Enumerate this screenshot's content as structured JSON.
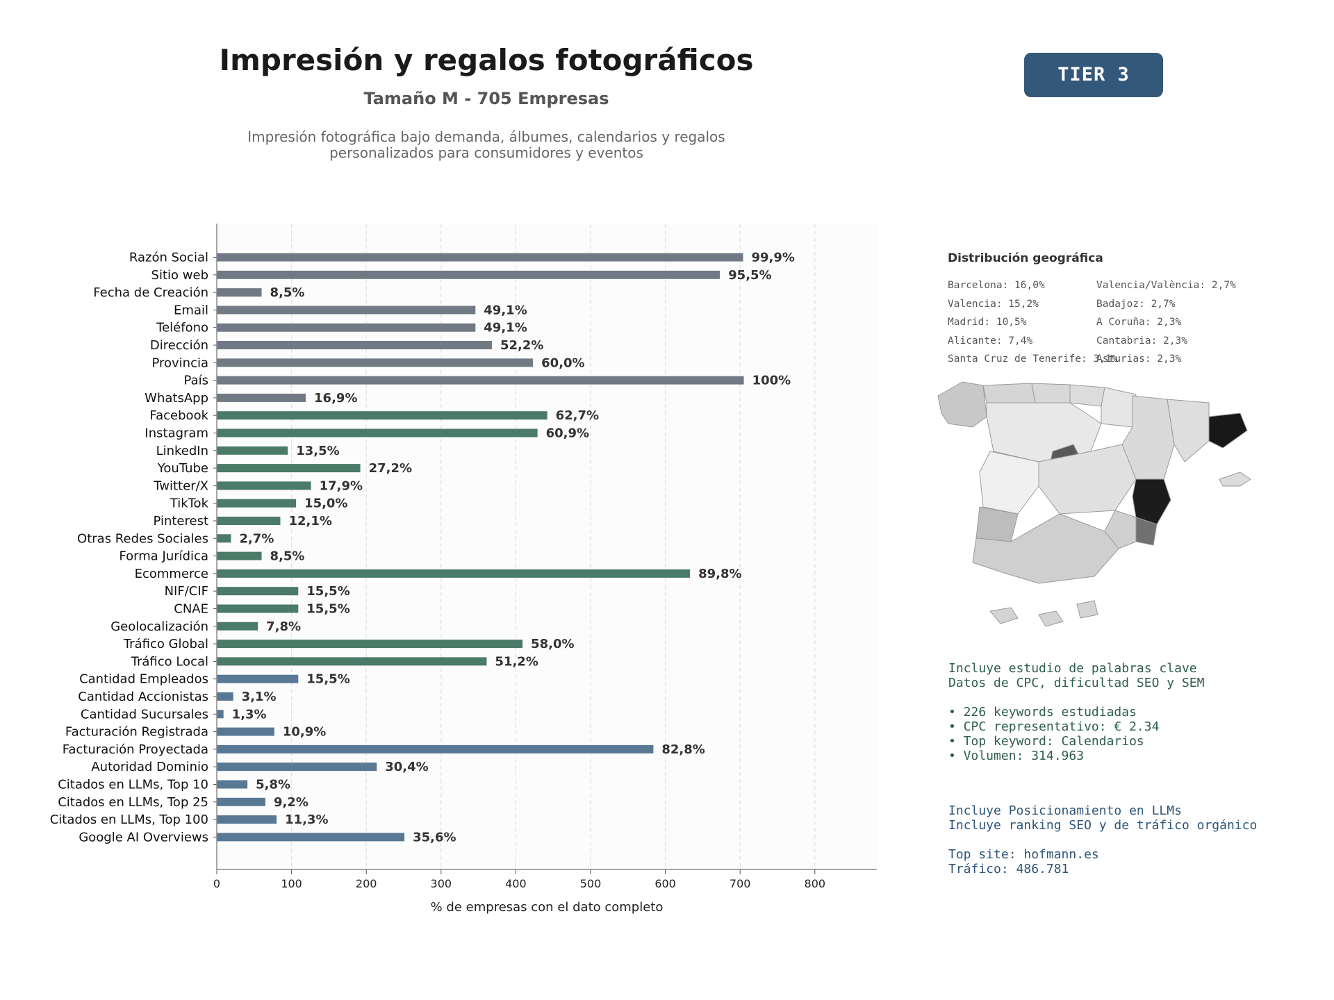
{
  "header": {
    "title": "Impresión y regalos fotográficos",
    "subtitle": "Tamaño M - 705 Empresas",
    "description": "Impresión fotográfica bajo demanda, álbumes, calendarios y regalos\npersonalizados para consumidores y eventos",
    "tier": "TIER 3"
  },
  "colors": {
    "identity": "#717a84",
    "digital": "#4a7a68",
    "business": "#587894",
    "text_green": "#2e5e4e",
    "text_blue": "#2f5578",
    "badge": "#34587a"
  },
  "chart_data": {
    "type": "bar",
    "orientation": "horizontal",
    "xlabel": "% de empresas con el dato completo",
    "xlim": [
      0,
      880
    ],
    "xticks": [
      0,
      100,
      200,
      300,
      400,
      500,
      600,
      700,
      800
    ],
    "grid": "vertical dashed",
    "categories": [
      "Razón Social",
      "Sitio web",
      "Fecha de Creación",
      "Email",
      "Teléfono",
      "Dirección",
      "Provincia",
      "País",
      "WhatsApp",
      "Facebook",
      "Instagram",
      "LinkedIn",
      "YouTube",
      "Twitter/X",
      "TikTok",
      "Pinterest",
      "Otras Redes Sociales",
      "Forma Jurídica",
      "Ecommerce",
      "NIF/CIF",
      "CNAE",
      "Geolocalización",
      "Tráfico Global",
      "Tráfico Local",
      "Cantidad Empleados",
      "Cantidad Accionistas",
      "Cantidad Sucursales",
      "Facturación Registrada",
      "Facturación Proyectada",
      "Autoridad Dominio",
      "Citados en LLMs, Top 10",
      "Citados en LLMs, Top 25",
      "Citados en LLMs, Top 100",
      "Google AI Overviews"
    ],
    "values": [
      704,
      673,
      60,
      346,
      346,
      368,
      423,
      705,
      119,
      442,
      429,
      95,
      192,
      126,
      106,
      85,
      19,
      60,
      633,
      109,
      109,
      55,
      409,
      361,
      109,
      22,
      9,
      77,
      584,
      214,
      41,
      65,
      80,
      251
    ],
    "labels": [
      "99,9%",
      "95,5%",
      "8,5%",
      "49,1%",
      "49,1%",
      "52,2%",
      "60,0%",
      "100%",
      "16,9%",
      "62,7%",
      "60,9%",
      "13,5%",
      "27,2%",
      "17,9%",
      "15,0%",
      "12,1%",
      "2,7%",
      "8,5%",
      "89,8%",
      "15,5%",
      "15,5%",
      "7,8%",
      "58,0%",
      "51,2%",
      "15,5%",
      "3,1%",
      "1,3%",
      "10,9%",
      "82,8%",
      "30,4%",
      "5,8%",
      "9,2%",
      "11,3%",
      "35,6%"
    ],
    "groups": [
      "identity",
      "identity",
      "identity",
      "identity",
      "identity",
      "identity",
      "identity",
      "identity",
      "identity",
      "digital",
      "digital",
      "digital",
      "digital",
      "digital",
      "digital",
      "digital",
      "digital",
      "digital",
      "digital",
      "digital",
      "digital",
      "digital",
      "digital",
      "digital",
      "business",
      "business",
      "business",
      "business",
      "business",
      "business",
      "business",
      "business",
      "business",
      "business"
    ]
  },
  "geo": {
    "title": "Distribución geográfica",
    "col1": [
      "Barcelona: 16,0%",
      "Valencia: 15,2%",
      "Madrid: 10,5%",
      "Alicante: 7,4%",
      "Santa Cruz de Tenerife: 3,1%"
    ],
    "col2": [
      "Valencia/València: 2,7%",
      "Badajoz: 2,7%",
      "A Coruña: 2,3%",
      "Cantabria: 2,3%",
      "Asturias: 2,3%"
    ]
  },
  "keywords": {
    "line1": "Incluye estudio de palabras clave",
    "line2": "Datos de CPC, dificultad SEO y SEM",
    "bullet1": "• 226 keywords estudiadas",
    "bullet2": "• CPC representativo: € 2.34",
    "bullet3": "• Top keyword: Calendarios",
    "bullet4": "• Volumen: 314.963"
  },
  "llm": {
    "line1": "Incluye Posicionamiento en LLMs",
    "line2": "Incluye ranking SEO y de tráfico orgánico",
    "top_site": "Top site: hofmann.es",
    "traffic": "Tráfico: 486.781"
  }
}
